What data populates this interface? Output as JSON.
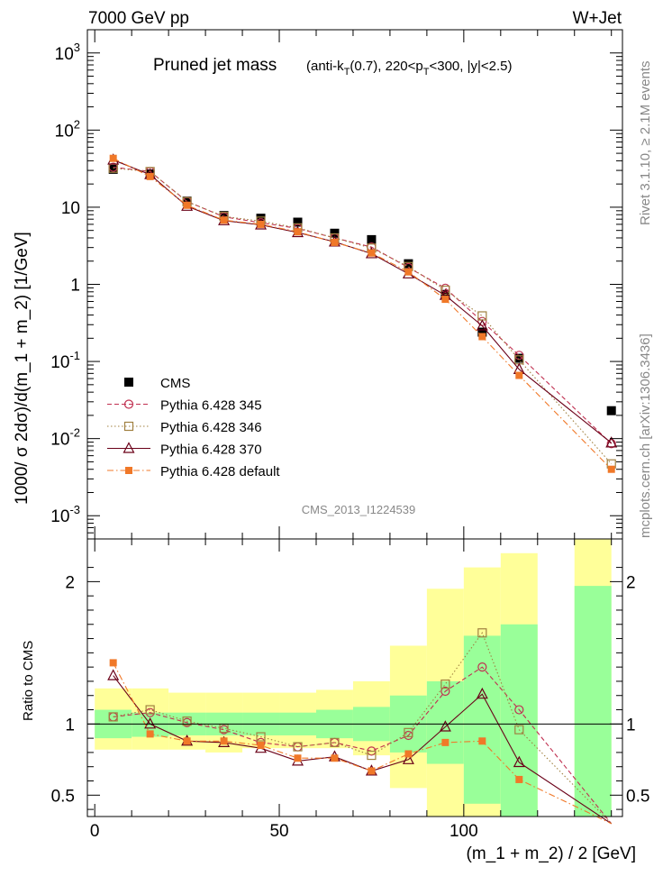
{
  "header": {
    "left": "7000 GeV pp",
    "right": "W+Jet"
  },
  "side": {
    "rivet": "Rivet 3.1.10, ≥ 2.1M events",
    "mcplots": "mcplots.cern.ch [arXiv:1306.3436]"
  },
  "chart_data": [
    {
      "type": "scatter",
      "title": "Pruned jet mass",
      "title_main": "Pruned jet mass",
      "title_detail": "(anti-kT(0.7), 220<pT<300, |y|<2.5)",
      "analysis_label": "CMS_2013_I1224539",
      "ylabel": "1000/ σ 2dσ)/d(m_1 + m_2) [1/GeV]",
      "yscale": "log",
      "ylim": [
        0.0005,
        2000
      ],
      "xlim": [
        -2,
        143
      ],
      "y_ticks": [
        {
          "value": 0.001,
          "base": "10",
          "exp": "-3"
        },
        {
          "value": 0.01,
          "base": "10",
          "exp": "-2"
        },
        {
          "value": 0.1,
          "base": "10",
          "exp": "-1"
        },
        {
          "value": 1,
          "base": "1",
          "exp": ""
        },
        {
          "value": 10,
          "base": "10",
          "exp": ""
        },
        {
          "value": 100,
          "base": "10",
          "exp": "2"
        },
        {
          "value": 1000,
          "base": "10",
          "exp": "3"
        }
      ],
      "x": [
        5,
        15,
        25,
        35,
        45,
        55,
        65,
        75,
        85,
        95,
        105,
        115,
        140
      ],
      "series": [
        {
          "name": "CMS",
          "color": "#000000",
          "marker": "square-filled",
          "line": "none",
          "values": [
            31,
            27,
            12,
            7.8,
            7.2,
            6.4,
            4.6,
            3.8,
            1.85,
            0.74,
            0.24,
            0.11,
            0.023
          ]
        },
        {
          "name": "Pythia 6.428 345",
          "color": "#c03050",
          "marker": "circle-open",
          "line": "dashed",
          "values": [
            33,
            29,
            11.9,
            7.5,
            6.3,
            5.3,
            4.0,
            3.05,
            1.65,
            0.89,
            0.33,
            0.12,
            0.0086
          ]
        },
        {
          "name": "Pythia 6.428 346",
          "color": "#a08040",
          "marker": "square-open",
          "line": "dotted",
          "values": [
            32,
            29,
            11.8,
            7.6,
            6.6,
            5.4,
            4.0,
            2.95,
            1.7,
            0.84,
            0.39,
            0.105,
            0.0047
          ]
        },
        {
          "name": "Pythia 6.428 370",
          "color": "#6a0018",
          "marker": "triangle-open",
          "line": "solid",
          "values": [
            41,
            26.5,
            10.3,
            6.7,
            5.9,
            4.7,
            3.55,
            2.5,
            1.37,
            0.72,
            0.29,
            0.079,
            0.0088
          ]
        },
        {
          "name": "Pythia 6.428 default",
          "color": "#f07828",
          "marker": "square-filled-small",
          "line": "dashdot",
          "values": [
            43,
            25,
            10.6,
            6.8,
            6.0,
            4.8,
            3.5,
            2.55,
            1.45,
            0.64,
            0.21,
            0.066,
            0.004
          ]
        }
      ]
    },
    {
      "type": "scatter",
      "title": "",
      "ylabel": "Ratio to CMS",
      "xlabel": "(m_1 + m_2) / 2 [GeV]",
      "ylim": [
        0.35,
        2.3
      ],
      "xlim": [
        -2,
        143
      ],
      "y_ticks": [
        0.5,
        1,
        2
      ],
      "x_ticks": [
        0,
        50,
        100
      ],
      "x": [
        5,
        15,
        25,
        35,
        45,
        55,
        65,
        75,
        85,
        95,
        105,
        115,
        140
      ],
      "bands": [
        {
          "x0": 0,
          "x1": 10,
          "green": [
            0.9,
            1.1
          ],
          "yellow": [
            0.82,
            1.25
          ]
        },
        {
          "x0": 10,
          "x1": 20,
          "green": [
            0.91,
            1.08
          ],
          "yellow": [
            0.82,
            1.25
          ]
        },
        {
          "x0": 20,
          "x1": 30,
          "green": [
            0.92,
            1.08
          ],
          "yellow": [
            0.82,
            1.22
          ]
        },
        {
          "x0": 30,
          "x1": 40,
          "green": [
            0.92,
            1.08
          ],
          "yellow": [
            0.8,
            1.22
          ]
        },
        {
          "x0": 40,
          "x1": 50,
          "green": [
            0.92,
            1.08
          ],
          "yellow": [
            0.83,
            1.22
          ]
        },
        {
          "x0": 50,
          "x1": 60,
          "green": [
            0.92,
            1.08
          ],
          "yellow": [
            0.83,
            1.22
          ]
        },
        {
          "x0": 60,
          "x1": 70,
          "green": [
            0.9,
            1.1
          ],
          "yellow": [
            0.83,
            1.24
          ]
        },
        {
          "x0": 70,
          "x1": 80,
          "green": [
            0.88,
            1.12
          ],
          "yellow": [
            0.78,
            1.3
          ]
        },
        {
          "x0": 80,
          "x1": 90,
          "green": [
            0.8,
            1.2
          ],
          "yellow": [
            0.55,
            1.55
          ]
        },
        {
          "x0": 90,
          "x1": 100,
          "green": [
            0.72,
            1.3
          ],
          "yellow": [
            0.35,
            1.95
          ]
        },
        {
          "x0": 100,
          "x1": 110,
          "green": [
            0.44,
            1.62
          ],
          "yellow": [
            0.35,
            2.1
          ]
        },
        {
          "x0": 110,
          "x1": 120,
          "green": [
            0.35,
            1.7
          ],
          "yellow": [
            0.35,
            2.2
          ]
        },
        {
          "x0": 130,
          "x1": 140,
          "green": [
            0.35,
            1.97
          ],
          "yellow": [
            0.35,
            2.3
          ]
        }
      ],
      "series": [
        {
          "name": "Pythia 6.428 345",
          "color": "#c03050",
          "marker": "circle-open",
          "line": "dashed",
          "values": [
            1.05,
            1.08,
            1.01,
            0.96,
            0.87,
            0.84,
            0.87,
            0.81,
            0.92,
            1.23,
            1.4,
            1.1,
            0.3
          ]
        },
        {
          "name": "Pythia 6.428 346",
          "color": "#a08040",
          "marker": "square-open",
          "line": "dotted",
          "values": [
            1.05,
            1.1,
            1.02,
            0.97,
            0.91,
            0.84,
            0.87,
            0.78,
            0.94,
            1.28,
            1.64,
            0.96,
            0.3
          ]
        },
        {
          "name": "Pythia 6.428 370",
          "color": "#6a0018",
          "marker": "triangle-open",
          "line": "solid",
          "values": [
            1.34,
            1.0,
            0.88,
            0.87,
            0.83,
            0.74,
            0.77,
            0.67,
            0.75,
            0.98,
            1.21,
            0.73,
            0.3
          ]
        },
        {
          "name": "Pythia 6.428 default",
          "color": "#f07828",
          "marker": "square-filled-small",
          "line": "dashdot",
          "values": [
            1.43,
            0.93,
            0.88,
            0.88,
            0.85,
            0.76,
            0.76,
            0.67,
            0.79,
            0.87,
            0.88,
            0.61,
            0.3
          ]
        }
      ]
    }
  ]
}
